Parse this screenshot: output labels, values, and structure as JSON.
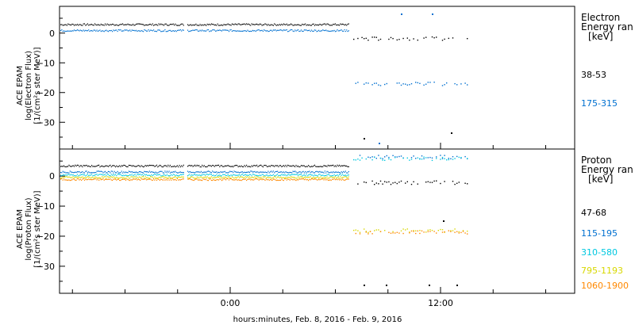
{
  "chart_data": [
    {
      "type": "scatter",
      "ylabel": [
        "ACE EPAM",
        "log(Electron Flux)",
        "[1/(cm²s ster MeV)]"
      ],
      "ylim": [
        -39,
        9
      ],
      "yticks": [
        0,
        -10,
        -20,
        -30
      ],
      "legend_title": [
        "Electron",
        "Energy ran",
        "[keV]"
      ],
      "legend_placement": "right",
      "series": [
        {
          "name": "38-53",
          "color": "#000000",
          "level_day1": 3.0,
          "level_day2": -1.7
        },
        {
          "name": "175-315",
          "color": "#0070d0",
          "level_day1": 1.0,
          "level_day2": -16.9
        }
      ]
    },
    {
      "type": "scatter",
      "ylabel": [
        "ACE EPAM",
        "log(Proton Flux)",
        "[1/(cm²s ster MeV)]"
      ],
      "ylim": [
        -39,
        9
      ],
      "yticks": [
        0,
        -10,
        -20,
        -30
      ],
      "legend_title": [
        "Proton",
        "Energy ran",
        "[keV]"
      ],
      "legend_placement": "right",
      "series": [
        {
          "name": "47-68",
          "color": "#000000",
          "level_day1": 3.5,
          "level_day2": -2.0
        },
        {
          "name": "115-195",
          "color": "#0070d0",
          "level_day1": 1.5,
          "level_day2": 6.5
        },
        {
          "name": "310-580",
          "color": "#00c8e0",
          "level_day1": 0.5,
          "level_day2": 6.0
        },
        {
          "name": "795-1193",
          "color": "#d8d800",
          "level_day1": -0.3,
          "level_day2": -18.0
        },
        {
          "name": "1060-1900",
          "color": "#ff8800",
          "level_day1": -1.0,
          "level_day2": -18.5
        }
      ]
    }
  ],
  "x_axis": {
    "ticks": [
      "0:00",
      "12:00"
    ],
    "title": "hours:minutes, Feb.  8, 2016 - Feb.  9, 2016"
  }
}
